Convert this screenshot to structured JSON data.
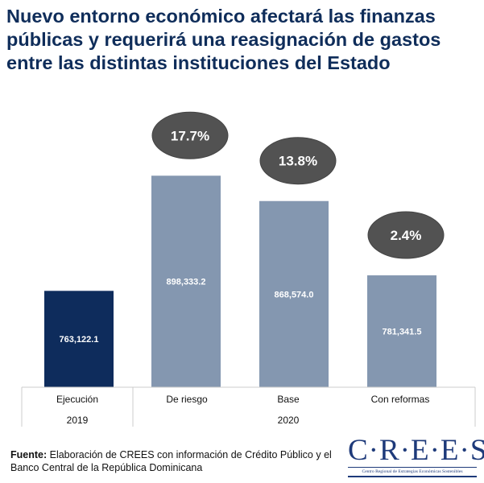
{
  "title": "Nuevo entorno económico afectará las finanzas públicas y requerirá una reasignación de gastos entre las distintas instituciones del Estado",
  "chart_data": {
    "type": "bar",
    "categories": [
      "Ejecución",
      "De riesgo",
      "Base",
      "Con reformas"
    ],
    "group_labels": [
      {
        "label": "2019",
        "span": [
          0,
          0
        ]
      },
      {
        "label": "2020",
        "span": [
          1,
          3
        ]
      }
    ],
    "values": [
      763122.1,
      898333.2,
      868574.0,
      781341.5
    ],
    "value_labels": [
      "763,122.1",
      "898,333.2",
      "868,574.0",
      "781,341.5"
    ],
    "growth_labels": [
      "",
      "17.7%",
      "13.8%",
      "2.4%"
    ],
    "ylim": [
      650000,
      1000000
    ],
    "colors": [
      "#0e2c5c",
      "#8497b0",
      "#8497b0",
      "#8497b0"
    ],
    "bubble_color": "#525252",
    "xlabel": "",
    "ylabel": ""
  },
  "source": {
    "label": "Fuente:",
    "text": " Elaboración de CREES con información de Crédito Público y el Banco Central de la República Dominicana"
  },
  "logo": {
    "name": "C·R·E·E·S",
    "subtitle": "Centro Regional de Estrategias Económicas Sostenibles"
  }
}
